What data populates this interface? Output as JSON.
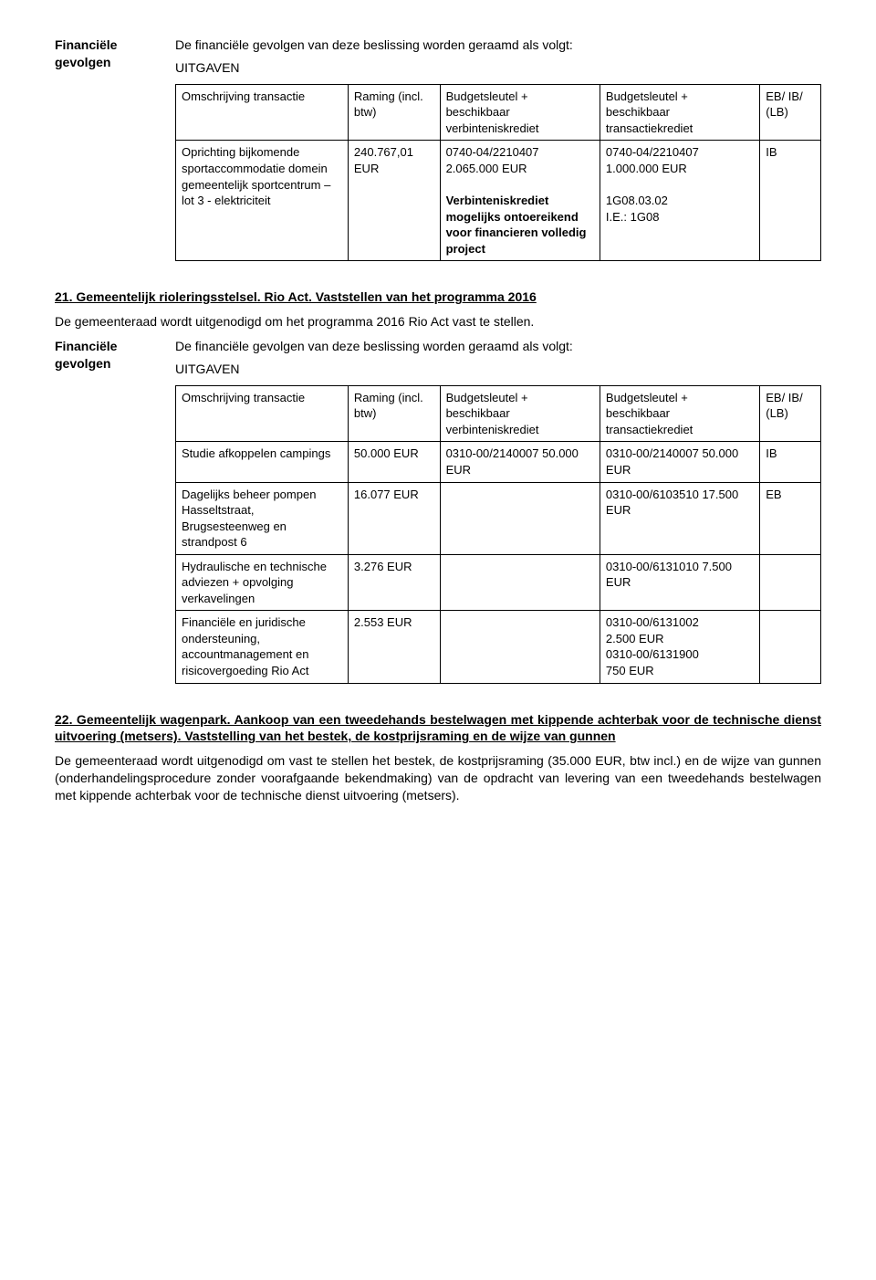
{
  "sections": {
    "s1": {
      "leftLabel": "Financiële gevolgen",
      "intro": "De financiële gevolgen van deze beslissing worden geraamd als volgt:",
      "sub": "UITGAVEN",
      "table": {
        "headers": {
          "c1": "Omschrijving transactie",
          "c2": "Raming (incl. btw)",
          "c3": "Budgetsleutel + beschikbaar verbinteniskrediet",
          "c4": "Budgetsleutel + beschikbaar transactiekrediet",
          "c5": "EB/ IB/ (LB)"
        },
        "row": {
          "c1": "Oprichting bijkomende sportaccommodatie domein gemeentelijk sportcentrum – lot 3 - elektriciteit",
          "c2": "240.767,01 EUR",
          "c3a": "0740-04/2210407",
          "c3b": "2.065.000 EUR",
          "c3c": "Verbinteniskrediet mogelijks ontoereikend voor financieren volledig project",
          "c4a": "0740-04/2210407",
          "c4b": "1.000.000 EUR",
          "c4c": "1G08.03.02",
          "c4d": "I.E.: 1G08",
          "c5": "IB"
        }
      }
    },
    "h21": "21. Gemeentelijk rioleringsstelsel. Rio Act. Vaststellen van het programma 2016",
    "p21": "De gemeenteraad wordt uitgenodigd om het programma 2016 Rio Act vast te stellen.",
    "s2": {
      "leftLabel": "Financiële gevolgen",
      "intro": "De financiële gevolgen van deze beslissing worden geraamd als volgt:",
      "sub": "UITGAVEN",
      "headers": {
        "c1": "Omschrijving transactie",
        "c2": "Raming (incl. btw)",
        "c3": "Budgetsleutel + beschikbaar verbinteniskrediet",
        "c4": "Budgetsleutel + beschikbaar transactiekrediet",
        "c5": "EB/ IB/ (LB)"
      },
      "r1": {
        "c1": "Studie  afkoppelen campings",
        "c2": "50.000 EUR",
        "c3": "0310-00/2140007 50.000 EUR",
        "c4": "0310-00/2140007 50.000 EUR",
        "c5": "IB"
      },
      "r2": {
        "c1": "Dagelijks  beheer pompen Hasseltstraat, Brugsesteenweg en strandpost 6",
        "c2": "16.077 EUR",
        "c3": "",
        "c4": "0310-00/6103510 17.500 EUR",
        "c5": "EB"
      },
      "r3": {
        "c1": "Hydraulische en technische adviezen + opvolging verkavelingen",
        "c2": "3.276 EUR",
        "c3": "",
        "c4": "0310-00/6131010 7.500 EUR",
        "c5": ""
      },
      "r4": {
        "c1": "Financiële en juridische ondersteuning, accountmanagement en risicovergoeding Rio Act",
        "c2": "2.553 EUR",
        "c3": "",
        "c4a": "0310-00/6131002",
        "c4b": "2.500 EUR",
        "c4c": "0310-00/6131900",
        "c4d": "750 EUR",
        "c5": ""
      }
    },
    "h22": "22. Gemeentelijk wagenpark. Aankoop van een tweedehands bestelwagen met kippende achterbak voor de technische dienst uitvoering (metsers). Vaststelling van het bestek, de kostprijsraming en de wijze van gunnen",
    "p22": "De gemeenteraad wordt uitgenodigd om vast te stellen het bestek, de kostprijsraming (35.000 EUR, btw incl.) en de wijze van gunnen (onderhandelingsprocedure zonder voorafgaande bekendmaking) van de opdracht van levering van een tweedehands bestelwagen met kippende achterbak voor de technische dienst uitvoering (metsers)."
  }
}
